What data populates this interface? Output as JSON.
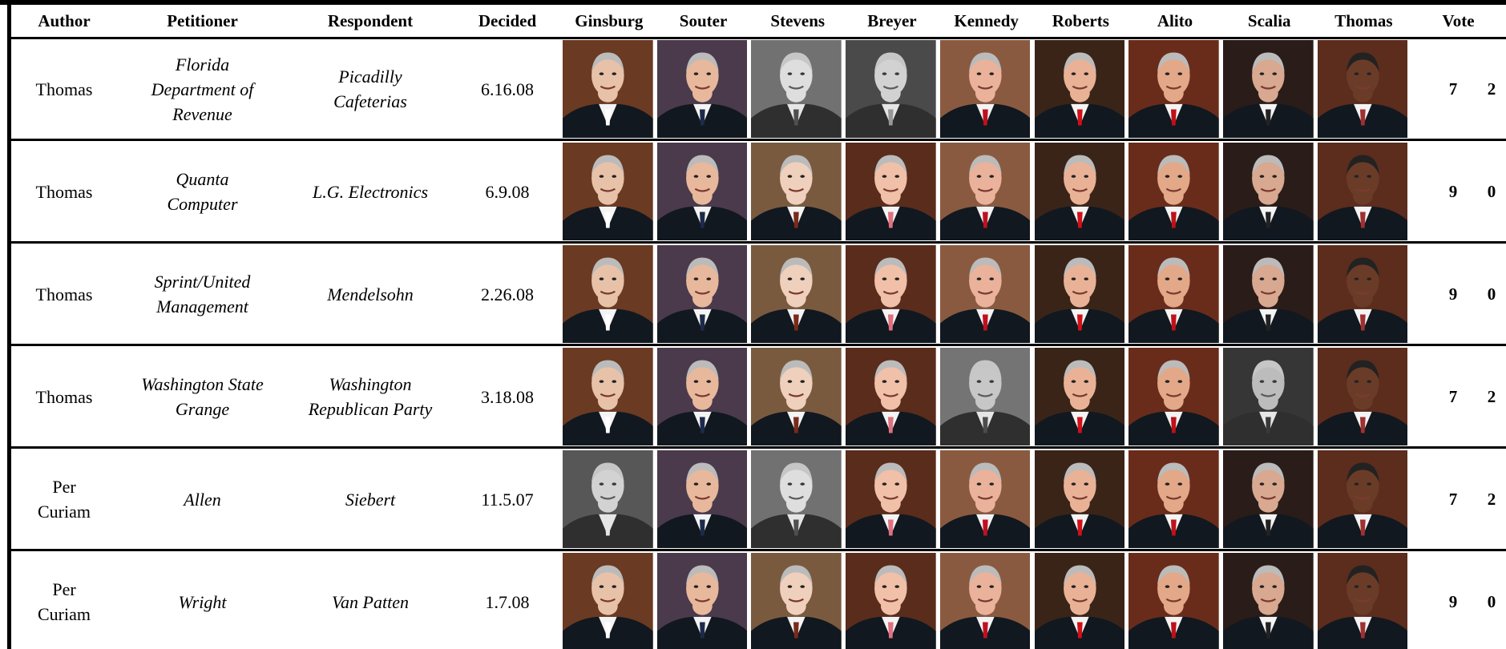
{
  "table": {
    "columns": [
      "Author",
      "Petitioner",
      "Respondent",
      "Decided",
      "Ginsburg",
      "Souter",
      "Stevens",
      "Breyer",
      "Kennedy",
      "Roberts",
      "Alito",
      "Scalia",
      "Thomas",
      "Vote"
    ],
    "rows": [
      {
        "author": [
          "Thomas"
        ],
        "petitioner": [
          "Florida",
          "Department of",
          "Revenue"
        ],
        "respondent": [
          "Picadilly",
          "Cafeterias"
        ],
        "decided": "6.16.08",
        "vote": [
          7,
          2
        ],
        "dissent": [
          6,
          7
        ]
      },
      {
        "author": [
          "Thomas"
        ],
        "petitioner": [
          "Quanta",
          "Computer"
        ],
        "respondent": [
          "L.G. Electronics"
        ],
        "decided": "6.9.08",
        "vote": [
          9,
          0
        ],
        "dissent": []
      },
      {
        "author": [
          "Thomas"
        ],
        "petitioner": [
          "Sprint/United",
          "Management"
        ],
        "respondent": [
          "Mendelsohn"
        ],
        "decided": "2.26.08",
        "vote": [
          9,
          0
        ],
        "dissent": []
      },
      {
        "author": [
          "Thomas"
        ],
        "petitioner": [
          "Washington State",
          "Grange"
        ],
        "respondent": [
          "Washington",
          "Republican Party"
        ],
        "decided": "3.18.08",
        "vote": [
          7,
          2
        ],
        "dissent": [
          8,
          11
        ]
      },
      {
        "author": [
          "Per",
          "Curiam"
        ],
        "petitioner": [
          "Allen"
        ],
        "respondent": [
          "Siebert"
        ],
        "decided": "11.5.07",
        "vote": [
          7,
          2
        ],
        "dissent": [
          4,
          6
        ]
      },
      {
        "author": [
          "Per",
          "Curiam"
        ],
        "petitioner": [
          "Wright"
        ],
        "respondent": [
          "Van Patten"
        ],
        "decided": "1.7.08",
        "vote": [
          9,
          0
        ],
        "dissent": []
      }
    ]
  }
}
